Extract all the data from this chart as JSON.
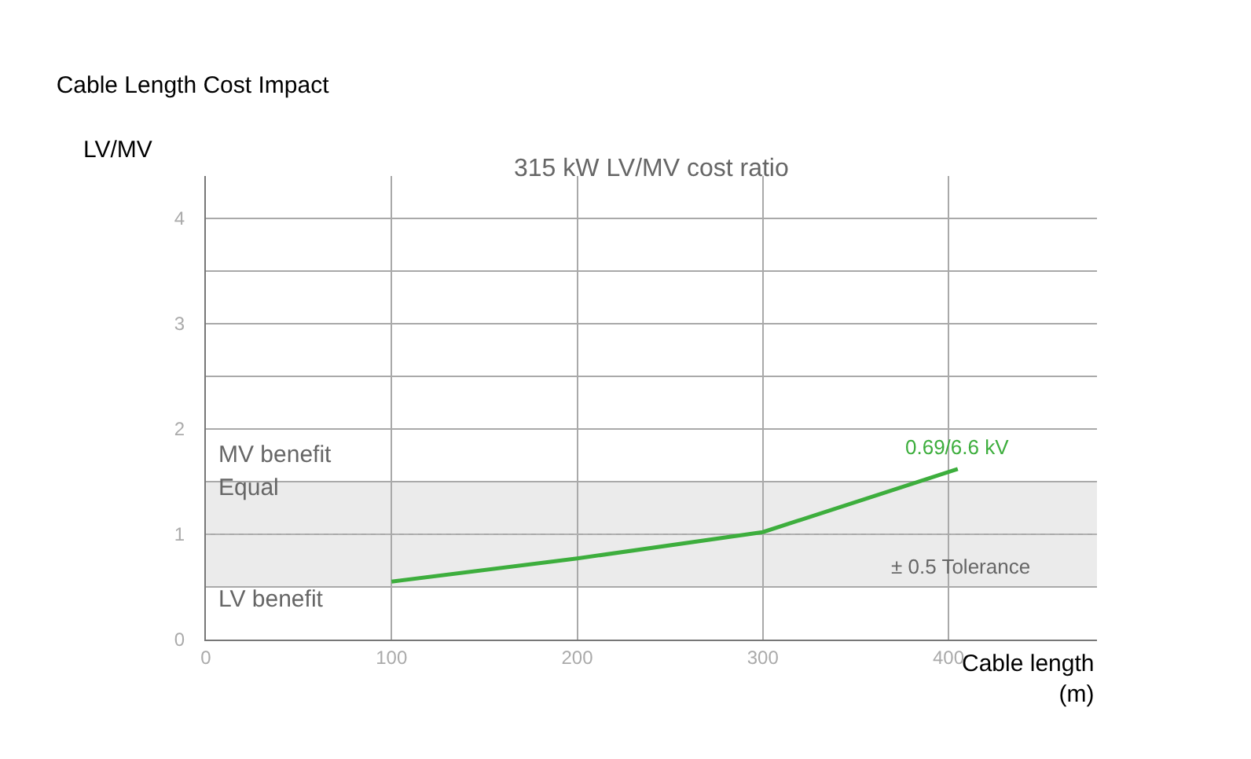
{
  "chart_data": {
    "type": "line",
    "title": "Cable Length Cost Impact",
    "subtitle": "315 kW LV/MV cost ratio",
    "xlabel": "Cable length\n(m)",
    "ylabel": "LV/MV",
    "x": [
      100,
      200,
      300,
      405
    ],
    "series": [
      {
        "name": "0.69/6.6 kV",
        "color": "#3dae3d",
        "values": [
          0.55,
          0.77,
          1.02,
          1.62
        ]
      }
    ],
    "xlim": [
      0,
      480
    ],
    "xticks": [
      0,
      100,
      200,
      300,
      400
    ],
    "ylim": [
      0,
      4.4
    ],
    "yticks": [
      0,
      {
        "value": 0.5,
        "label": null
      },
      1,
      {
        "value": 1.5,
        "label": null
      },
      2,
      {
        "value": 2.5,
        "label": null
      },
      3,
      {
        "value": 3.5,
        "label": null
      },
      4
    ],
    "grid": true,
    "legend": false,
    "marker": "none",
    "line_style": "solid",
    "bands": [
      {
        "axis": "y",
        "from": 0.5,
        "to": 1.5,
        "label": "± 0.5 Tolerance",
        "color": "#ebebeb"
      }
    ],
    "ref_lines": [
      {
        "axis": "y",
        "value": 1,
        "color": "#b0b0b0",
        "line_style": "dotted"
      }
    ],
    "annotations": [
      "MV benefit",
      "Equal",
      "LV benefit"
    ]
  }
}
